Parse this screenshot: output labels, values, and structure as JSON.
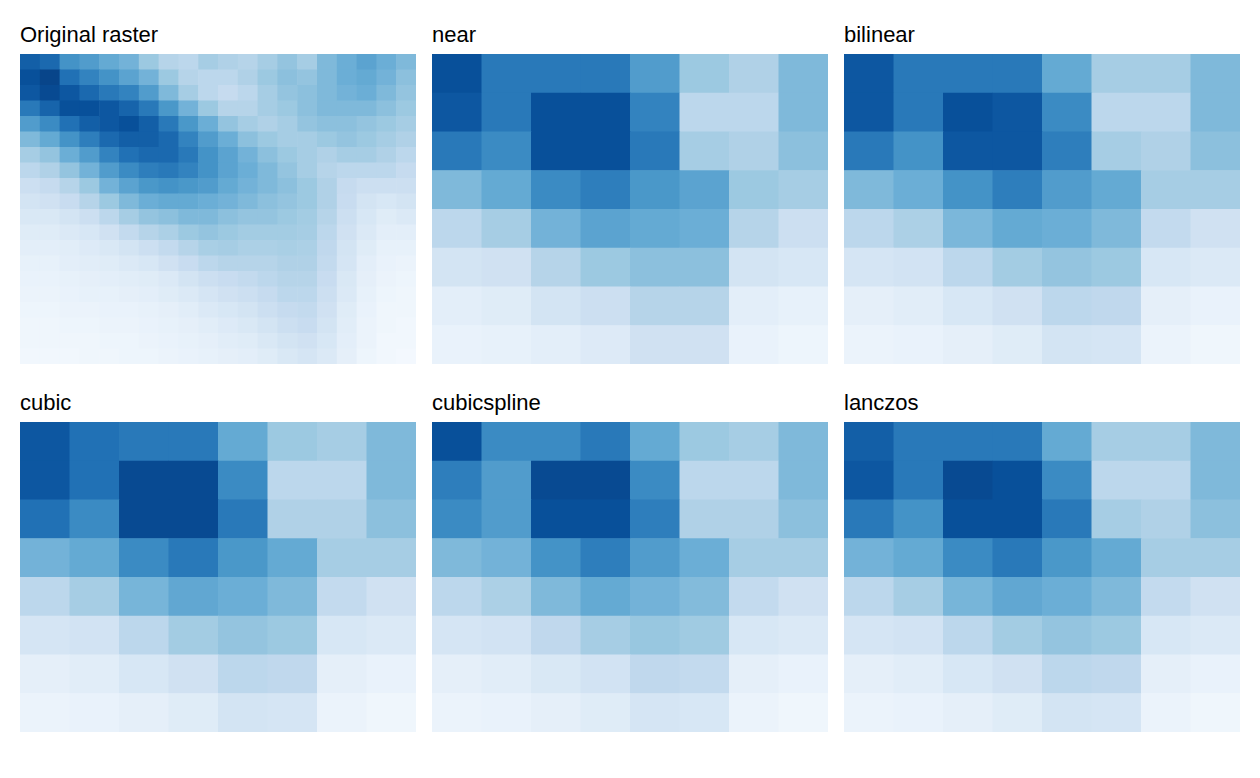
{
  "chart_data": [
    {
      "type": "heatmap",
      "title": "Original raster",
      "tick_labels": false,
      "color_range": [
        0.0,
        1.0
      ],
      "cells": [
        [
          0.82,
          0.78,
          0.62,
          0.58,
          0.52,
          0.48,
          0.38,
          0.3,
          0.28,
          0.35,
          0.32,
          0.3,
          0.35,
          0.4,
          0.35,
          0.45,
          0.5,
          0.55,
          0.5,
          0.45
        ],
        [
          0.88,
          0.92,
          0.75,
          0.68,
          0.62,
          0.55,
          0.48,
          0.38,
          0.3,
          0.28,
          0.28,
          0.32,
          0.38,
          0.42,
          0.4,
          0.45,
          0.5,
          0.52,
          0.48,
          0.42
        ],
        [
          0.85,
          0.9,
          0.85,
          0.78,
          0.72,
          0.68,
          0.58,
          0.45,
          0.35,
          0.28,
          0.25,
          0.28,
          0.35,
          0.4,
          0.42,
          0.45,
          0.48,
          0.5,
          0.45,
          0.4
        ],
        [
          0.72,
          0.8,
          0.88,
          0.88,
          0.85,
          0.8,
          0.72,
          0.6,
          0.48,
          0.38,
          0.3,
          0.3,
          0.35,
          0.38,
          0.42,
          0.45,
          0.45,
          0.45,
          0.42,
          0.38
        ],
        [
          0.58,
          0.65,
          0.75,
          0.82,
          0.85,
          0.88,
          0.82,
          0.72,
          0.6,
          0.5,
          0.4,
          0.35,
          0.32,
          0.35,
          0.4,
          0.42,
          0.42,
          0.4,
          0.38,
          0.35
        ],
        [
          0.45,
          0.52,
          0.62,
          0.7,
          0.78,
          0.82,
          0.82,
          0.78,
          0.68,
          0.58,
          0.5,
          0.42,
          0.38,
          0.35,
          0.35,
          0.38,
          0.4,
          0.38,
          0.35,
          0.32
        ],
        [
          0.35,
          0.4,
          0.5,
          0.58,
          0.68,
          0.75,
          0.78,
          0.78,
          0.72,
          0.62,
          0.55,
          0.48,
          0.42,
          0.38,
          0.35,
          0.32,
          0.35,
          0.35,
          0.32,
          0.28
        ],
        [
          0.28,
          0.32,
          0.4,
          0.48,
          0.58,
          0.65,
          0.7,
          0.72,
          0.68,
          0.62,
          0.55,
          0.5,
          0.45,
          0.4,
          0.35,
          0.3,
          0.28,
          0.28,
          0.28,
          0.25
        ],
        [
          0.22,
          0.25,
          0.3,
          0.38,
          0.48,
          0.55,
          0.6,
          0.62,
          0.6,
          0.58,
          0.52,
          0.48,
          0.45,
          0.42,
          0.38,
          0.32,
          0.25,
          0.22,
          0.22,
          0.22
        ],
        [
          0.18,
          0.2,
          0.24,
          0.3,
          0.38,
          0.45,
          0.5,
          0.52,
          0.52,
          0.5,
          0.48,
          0.45,
          0.42,
          0.4,
          0.38,
          0.32,
          0.24,
          0.18,
          0.16,
          0.18
        ],
        [
          0.15,
          0.15,
          0.18,
          0.22,
          0.28,
          0.35,
          0.4,
          0.42,
          0.45,
          0.45,
          0.42,
          0.4,
          0.4,
          0.38,
          0.36,
          0.3,
          0.22,
          0.16,
          0.12,
          0.14
        ],
        [
          0.12,
          0.12,
          0.14,
          0.16,
          0.2,
          0.26,
          0.3,
          0.33,
          0.38,
          0.4,
          0.38,
          0.36,
          0.36,
          0.36,
          0.35,
          0.28,
          0.2,
          0.14,
          0.1,
          0.1
        ],
        [
          0.1,
          0.1,
          0.11,
          0.13,
          0.15,
          0.18,
          0.22,
          0.26,
          0.3,
          0.34,
          0.35,
          0.33,
          0.33,
          0.34,
          0.33,
          0.27,
          0.18,
          0.12,
          0.08,
          0.08
        ],
        [
          0.08,
          0.08,
          0.1,
          0.11,
          0.12,
          0.14,
          0.16,
          0.2,
          0.24,
          0.28,
          0.3,
          0.3,
          0.3,
          0.32,
          0.32,
          0.26,
          0.17,
          0.1,
          0.07,
          0.06
        ],
        [
          0.07,
          0.07,
          0.08,
          0.09,
          0.1,
          0.11,
          0.12,
          0.14,
          0.18,
          0.22,
          0.24,
          0.26,
          0.28,
          0.3,
          0.3,
          0.24,
          0.15,
          0.09,
          0.06,
          0.05
        ],
        [
          0.06,
          0.06,
          0.07,
          0.08,
          0.08,
          0.09,
          0.1,
          0.12,
          0.14,
          0.17,
          0.2,
          0.22,
          0.25,
          0.28,
          0.28,
          0.22,
          0.14,
          0.08,
          0.05,
          0.04
        ],
        [
          0.05,
          0.05,
          0.06,
          0.06,
          0.07,
          0.07,
          0.08,
          0.09,
          0.11,
          0.14,
          0.16,
          0.18,
          0.22,
          0.25,
          0.26,
          0.2,
          0.12,
          0.07,
          0.04,
          0.04
        ],
        [
          0.04,
          0.04,
          0.05,
          0.05,
          0.06,
          0.06,
          0.07,
          0.08,
          0.09,
          0.11,
          0.13,
          0.15,
          0.18,
          0.22,
          0.24,
          0.18,
          0.11,
          0.06,
          0.04,
          0.03
        ],
        [
          0.04,
          0.04,
          0.04,
          0.04,
          0.05,
          0.05,
          0.06,
          0.07,
          0.08,
          0.09,
          0.11,
          0.12,
          0.15,
          0.18,
          0.2,
          0.16,
          0.1,
          0.06,
          0.03,
          0.03
        ],
        [
          0.03,
          0.03,
          0.03,
          0.04,
          0.04,
          0.05,
          0.05,
          0.06,
          0.07,
          0.08,
          0.09,
          0.1,
          0.12,
          0.15,
          0.17,
          0.14,
          0.09,
          0.05,
          0.03,
          0.02
        ]
      ]
    },
    {
      "type": "heatmap",
      "title": "near",
      "tick_labels": false,
      "color_range": [
        0.0,
        1.0
      ],
      "cells": [
        [
          0.88,
          0.72,
          0.72,
          0.72,
          0.58,
          0.38,
          0.32,
          0.45
        ],
        [
          0.85,
          0.72,
          0.88,
          0.88,
          0.68,
          0.28,
          0.28,
          0.45
        ],
        [
          0.72,
          0.65,
          0.88,
          0.88,
          0.72,
          0.35,
          0.32,
          0.42
        ],
        [
          0.45,
          0.52,
          0.65,
          0.7,
          0.6,
          0.55,
          0.38,
          0.35
        ],
        [
          0.28,
          0.35,
          0.48,
          0.55,
          0.52,
          0.5,
          0.3,
          0.22
        ],
        [
          0.18,
          0.2,
          0.3,
          0.38,
          0.42,
          0.42,
          0.18,
          0.16
        ],
        [
          0.1,
          0.12,
          0.18,
          0.22,
          0.3,
          0.3,
          0.1,
          0.08
        ],
        [
          0.07,
          0.08,
          0.1,
          0.13,
          0.2,
          0.2,
          0.07,
          0.05
        ]
      ]
    },
    {
      "type": "heatmap",
      "title": "bilinear",
      "tick_labels": false,
      "color_range": [
        0.0,
        1.0
      ],
      "cells": [
        [
          0.85,
          0.72,
          0.72,
          0.72,
          0.52,
          0.35,
          0.35,
          0.45
        ],
        [
          0.85,
          0.72,
          0.88,
          0.85,
          0.65,
          0.28,
          0.28,
          0.45
        ],
        [
          0.72,
          0.62,
          0.85,
          0.85,
          0.7,
          0.35,
          0.32,
          0.42
        ],
        [
          0.45,
          0.5,
          0.62,
          0.7,
          0.58,
          0.52,
          0.35,
          0.35
        ],
        [
          0.28,
          0.33,
          0.46,
          0.52,
          0.5,
          0.45,
          0.26,
          0.2
        ],
        [
          0.17,
          0.19,
          0.28,
          0.36,
          0.4,
          0.38,
          0.16,
          0.14
        ],
        [
          0.09,
          0.11,
          0.16,
          0.2,
          0.28,
          0.27,
          0.09,
          0.07
        ],
        [
          0.06,
          0.07,
          0.09,
          0.12,
          0.18,
          0.17,
          0.06,
          0.04
        ]
      ]
    },
    {
      "type": "heatmap",
      "title": "cubic",
      "tick_labels": false,
      "color_range": [
        0.0,
        1.0
      ],
      "cells": [
        [
          0.85,
          0.75,
          0.72,
          0.72,
          0.52,
          0.38,
          0.35,
          0.45
        ],
        [
          0.85,
          0.75,
          0.9,
          0.9,
          0.65,
          0.28,
          0.28,
          0.45
        ],
        [
          0.75,
          0.65,
          0.9,
          0.9,
          0.72,
          0.32,
          0.32,
          0.42
        ],
        [
          0.48,
          0.52,
          0.65,
          0.72,
          0.6,
          0.52,
          0.35,
          0.35
        ],
        [
          0.28,
          0.35,
          0.47,
          0.53,
          0.5,
          0.45,
          0.26,
          0.2
        ],
        [
          0.17,
          0.19,
          0.28,
          0.36,
          0.4,
          0.38,
          0.16,
          0.14
        ],
        [
          0.09,
          0.11,
          0.16,
          0.2,
          0.28,
          0.27,
          0.09,
          0.07
        ],
        [
          0.06,
          0.07,
          0.09,
          0.12,
          0.18,
          0.17,
          0.06,
          0.04
        ]
      ]
    },
    {
      "type": "heatmap",
      "title": "cubicspline",
      "tick_labels": false,
      "color_range": [
        0.0,
        1.0
      ],
      "cells": [
        [
          0.88,
          0.65,
          0.65,
          0.72,
          0.52,
          0.38,
          0.35,
          0.45
        ],
        [
          0.7,
          0.58,
          0.9,
          0.9,
          0.65,
          0.28,
          0.28,
          0.45
        ],
        [
          0.65,
          0.58,
          0.88,
          0.88,
          0.7,
          0.32,
          0.32,
          0.42
        ],
        [
          0.45,
          0.48,
          0.62,
          0.7,
          0.58,
          0.5,
          0.35,
          0.35
        ],
        [
          0.28,
          0.33,
          0.45,
          0.52,
          0.48,
          0.44,
          0.26,
          0.2
        ],
        [
          0.17,
          0.19,
          0.27,
          0.35,
          0.39,
          0.37,
          0.16,
          0.14
        ],
        [
          0.09,
          0.11,
          0.15,
          0.19,
          0.27,
          0.26,
          0.09,
          0.07
        ],
        [
          0.06,
          0.07,
          0.09,
          0.12,
          0.17,
          0.16,
          0.06,
          0.04
        ]
      ]
    },
    {
      "type": "heatmap",
      "title": "lanczos",
      "tick_labels": false,
      "color_range": [
        0.0,
        1.0
      ],
      "cells": [
        [
          0.82,
          0.72,
          0.72,
          0.72,
          0.52,
          0.35,
          0.35,
          0.45
        ],
        [
          0.85,
          0.72,
          0.9,
          0.88,
          0.65,
          0.28,
          0.28,
          0.45
        ],
        [
          0.72,
          0.62,
          0.88,
          0.88,
          0.72,
          0.35,
          0.32,
          0.42
        ],
        [
          0.48,
          0.52,
          0.65,
          0.72,
          0.6,
          0.52,
          0.35,
          0.35
        ],
        [
          0.28,
          0.35,
          0.47,
          0.53,
          0.5,
          0.45,
          0.26,
          0.2
        ],
        [
          0.17,
          0.19,
          0.28,
          0.36,
          0.4,
          0.38,
          0.16,
          0.14
        ],
        [
          0.09,
          0.11,
          0.16,
          0.2,
          0.28,
          0.27,
          0.09,
          0.07
        ],
        [
          0.06,
          0.07,
          0.09,
          0.12,
          0.18,
          0.17,
          0.06,
          0.04
        ]
      ]
    }
  ]
}
